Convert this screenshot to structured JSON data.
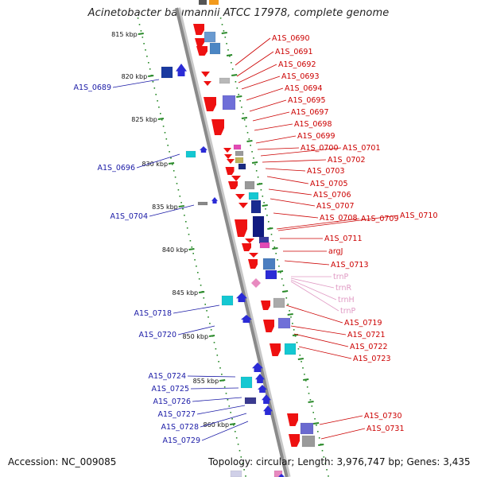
{
  "title": "Acinetobacter baumannii ATCC 17978, complete genome",
  "footer": {
    "accession": "Accession: NC_009085",
    "topology": "Topology: circular; Length: 3,976,747 bp; Genes: 3,435"
  },
  "colors": {
    "forward_label": "#cc0000",
    "reverse_label": "#1a1aa6",
    "trna_label": "#e09ac4",
    "ruler": "#2a8a2a",
    "backbone": "#8a8a8a"
  },
  "ruler_ticks": [
    "815 kbp",
    "820 kbp",
    "825 kbp",
    "830 kbp",
    "835 kbp",
    "840 kbp",
    "845 kbp",
    "850 kbp",
    "855 kbp",
    "860 kbp"
  ],
  "forward_labels": [
    "A1S_0690",
    "A1S_0691",
    "A1S_0692",
    "A1S_0693",
    "A1S_0694",
    "A1S_0695",
    "A1S_0697",
    "A1S_0698",
    "A1S_0699",
    "A1S_0700",
    "A1S_0701",
    "A1S_0702",
    "A1S_0703",
    "A1S_0705",
    "A1S_0706",
    "A1S_0707",
    "A1S_0708",
    "A1S_0709",
    "A1S_0710",
    "A1S_0711",
    "argJ",
    "A1S_0713",
    "A1S_0719",
    "A1S_0721",
    "A1S_0722",
    "A1S_0723",
    "A1S_0730",
    "A1S_0731"
  ],
  "trna_labels": [
    "trnP",
    "trnR",
    "trnH",
    "trnP"
  ],
  "reverse_labels": [
    "A1S_0689",
    "A1S_0696",
    "A1S_0704",
    "A1S_0718",
    "A1S_0720",
    "A1S_0724",
    "A1S_0725",
    "A1S_0726",
    "A1S_0727",
    "A1S_0728",
    "A1S_0729"
  ]
}
